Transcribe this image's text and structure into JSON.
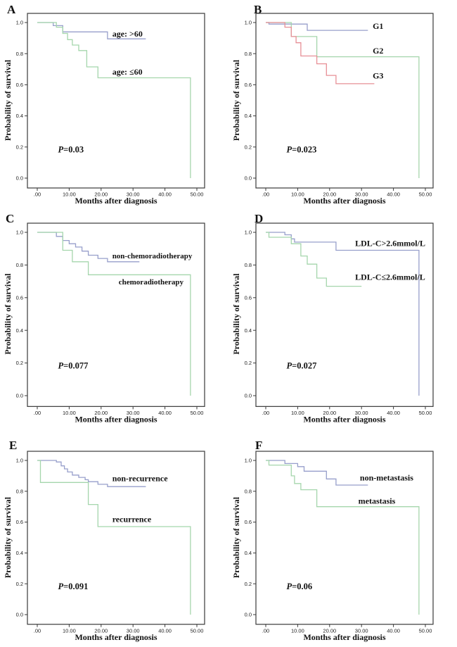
{
  "figure": {
    "description": "Six Kaplan-Meier survival curve panels (A-F)",
    "xlabel": "Months after diagnosis",
    "ylabel": "Probability of survival"
  },
  "chart_data": [
    {
      "type": "line",
      "subtype": "kaplan-meier-step",
      "panel": "A",
      "xlabel": "Months after diagnosis",
      "ylabel": "Probability of survival",
      "xlim": [
        -3,
        52.5
      ],
      "ylim": [
        -0.06,
        1.06
      ],
      "grid": false,
      "legend": "inline-annotations",
      "x_ticks": [
        0,
        10,
        20,
        30,
        40,
        50
      ],
      "x_tick_labels": [
        ".00",
        "10.00",
        "20.00",
        "30.00",
        "40.00",
        "50.00"
      ],
      "y_ticks": [
        0.0,
        0.2,
        0.4,
        0.6,
        0.8,
        1.0
      ],
      "y_tick_labels": [
        "0.0",
        "0.2",
        "0.4",
        "0.6",
        "0.8",
        "1.0"
      ],
      "p_label": {
        "text": "P=0.03",
        "x": 6.5,
        "y": 0.165
      },
      "series": [
        {
          "name": "age: >60",
          "color": "#979fcb",
          "label_pos": {
            "x": 23.5,
            "y": 0.91
          },
          "start": [
            0,
            1.0
          ],
          "steps": [
            [
              5,
              0.98
            ],
            [
              8,
              0.94
            ],
            [
              22,
              0.895
            ],
            [
              34,
              0.895
            ]
          ]
        },
        {
          "name": "age: ≤60",
          "color": "#a5d6ac",
          "label_pos": {
            "x": 23.5,
            "y": 0.665
          },
          "start": [
            0,
            1.0
          ],
          "steps": [
            [
              6,
              0.97
            ],
            [
              8,
              0.93
            ],
            [
              9.5,
              0.89
            ],
            [
              11,
              0.855
            ],
            [
              13,
              0.82
            ],
            [
              15.5,
              0.715
            ],
            [
              19,
              0.645
            ],
            [
              48,
              0
            ]
          ]
        }
      ]
    },
    {
      "type": "line",
      "subtype": "kaplan-meier-step",
      "panel": "B",
      "xlabel": "Months after diagnosis",
      "ylabel": "Probability of survival",
      "xlim": [
        -3,
        52.5
      ],
      "ylim": [
        -0.06,
        1.06
      ],
      "grid": false,
      "legend": "inline-annotations",
      "x_ticks": [
        0,
        10,
        20,
        30,
        40,
        50
      ],
      "x_tick_labels": [
        ".00",
        "10.00",
        "20.00",
        "30.00",
        "40.00",
        "50.00"
      ],
      "y_ticks": [
        0.0,
        0.2,
        0.4,
        0.6,
        0.8,
        1.0
      ],
      "y_tick_labels": [
        "0.0",
        "0.2",
        "0.4",
        "0.6",
        "0.8",
        "1.0"
      ],
      "p_label": {
        "text": "P=0.023",
        "x": 6.5,
        "y": 0.165
      },
      "series": [
        {
          "name": "G1",
          "color": "#979fcb",
          "label_pos": {
            "x": 33.5,
            "y": 0.96
          },
          "start": [
            0,
            1.0
          ],
          "steps": [
            [
              1,
              0.99
            ],
            [
              13,
              0.95
            ],
            [
              32,
              0.95
            ]
          ]
        },
        {
          "name": "G2",
          "color": "#a5d6ac",
          "label_pos": {
            "x": 33.5,
            "y": 0.8
          },
          "start": [
            0,
            1.0
          ],
          "steps": [
            [
              8,
              0.91
            ],
            [
              16,
              0.78
            ],
            [
              48,
              0
            ]
          ]
        },
        {
          "name": "G3",
          "color": "#e78f96",
          "label_pos": {
            "x": 33.5,
            "y": 0.64
          },
          "start": [
            0,
            1.0
          ],
          "steps": [
            [
              6,
              0.97
            ],
            [
              8,
              0.91
            ],
            [
              9.5,
              0.87
            ],
            [
              11,
              0.785
            ],
            [
              16,
              0.735
            ],
            [
              19,
              0.66
            ],
            [
              22,
              0.607
            ],
            [
              34,
              0.607
            ]
          ]
        }
      ]
    },
    {
      "type": "line",
      "subtype": "kaplan-meier-step",
      "panel": "C",
      "xlabel": "Months after diagnosis",
      "ylabel": "Probability of survival",
      "xlim": [
        -3,
        52.5
      ],
      "ylim": [
        -0.06,
        1.06
      ],
      "grid": false,
      "legend": "inline-annotations",
      "x_ticks": [
        0,
        10,
        20,
        30,
        40,
        50
      ],
      "x_tick_labels": [
        ".00",
        "10.00",
        "20.00",
        "30.00",
        "40.00",
        "50.00"
      ],
      "y_ticks": [
        0.0,
        0.2,
        0.4,
        0.6,
        0.8,
        1.0
      ],
      "y_tick_labels": [
        "0.0",
        "0.2",
        "0.4",
        "0.6",
        "0.8",
        "1.0"
      ],
      "p_label": {
        "text": "P=0.077",
        "x": 6.5,
        "y": 0.165
      },
      "series": [
        {
          "name": "non-chemoradiotherapy",
          "color": "#979fcb",
          "label_pos": {
            "x": 23.5,
            "y": 0.84
          },
          "start": [
            0,
            1.0
          ],
          "steps": [
            [
              6,
              0.975
            ],
            [
              8,
              0.95
            ],
            [
              10,
              0.93
            ],
            [
              12,
              0.91
            ],
            [
              14,
              0.885
            ],
            [
              16,
              0.86
            ],
            [
              19,
              0.84
            ],
            [
              22,
              0.82
            ],
            [
              32,
              0.82
            ]
          ]
        },
        {
          "name": "chemoradiotherapy",
          "color": "#a5d6ac",
          "label_pos": {
            "x": 25.5,
            "y": 0.68
          },
          "start": [
            0,
            1.0
          ],
          "steps": [
            [
              8,
              0.89
            ],
            [
              11,
              0.82
            ],
            [
              16,
              0.74
            ],
            [
              48,
              0
            ]
          ]
        }
      ]
    },
    {
      "type": "line",
      "subtype": "kaplan-meier-step",
      "panel": "D",
      "xlabel": "Months after diagnosis",
      "ylabel": "Probability of survival",
      "xlim": [
        -3,
        52.5
      ],
      "ylim": [
        -0.06,
        1.06
      ],
      "grid": false,
      "legend": "inline-annotations",
      "x_ticks": [
        0,
        10,
        20,
        30,
        40,
        50
      ],
      "x_tick_labels": [
        ".00",
        "10.00",
        "20.00",
        "30.00",
        "40.00",
        "50.00"
      ],
      "y_ticks": [
        0.0,
        0.2,
        0.4,
        0.6,
        0.8,
        1.0
      ],
      "y_tick_labels": [
        "0.0",
        "0.2",
        "0.4",
        "0.6",
        "0.8",
        "1.0"
      ],
      "p_label": {
        "text": "P=0.027",
        "x": 6.5,
        "y": 0.165
      },
      "series": [
        {
          "name": "LDL-C>2.6mmol/L",
          "color": "#979fcb",
          "label_pos": {
            "x": 28,
            "y": 0.915
          },
          "start": [
            0,
            1.0
          ],
          "steps": [
            [
              6,
              0.985
            ],
            [
              8,
              0.96
            ],
            [
              9,
              0.94
            ],
            [
              22,
              0.89
            ],
            [
              48,
              0
            ]
          ]
        },
        {
          "name": "LDL-C≤2.6mmol/L",
          "color": "#a5d6ac",
          "label_pos": {
            "x": 28,
            "y": 0.71
          },
          "start": [
            0,
            1.0
          ],
          "steps": [
            [
              1,
              0.97
            ],
            [
              8,
              0.93
            ],
            [
              11,
              0.855
            ],
            [
              13,
              0.805
            ],
            [
              16,
              0.72
            ],
            [
              19,
              0.67
            ],
            [
              30,
              0.67
            ]
          ]
        }
      ]
    },
    {
      "type": "line",
      "subtype": "kaplan-meier-step",
      "panel": "E",
      "xlabel": "Months after diagnosis",
      "ylabel": "Probability of survival",
      "xlim": [
        -3,
        52.5
      ],
      "ylim": [
        -0.06,
        1.06
      ],
      "grid": false,
      "legend": "inline-annotations",
      "x_ticks": [
        0,
        10,
        20,
        30,
        40,
        50
      ],
      "x_tick_labels": [
        ".00",
        "10.00",
        "20.00",
        "30.00",
        "40.00",
        "50.00"
      ],
      "y_ticks": [
        0.0,
        0.2,
        0.4,
        0.6,
        0.8,
        1.0
      ],
      "y_tick_labels": [
        "0.0",
        "0.2",
        "0.4",
        "0.6",
        "0.8",
        "1.0"
      ],
      "p_label": {
        "text": "P=0.091",
        "x": 6.5,
        "y": 0.165
      },
      "series": [
        {
          "name": "non-recurrence",
          "color": "#979fcb",
          "label_pos": {
            "x": 23.5,
            "y": 0.865
          },
          "start": [
            0,
            1.0
          ],
          "steps": [
            [
              6,
              0.99
            ],
            [
              7.5,
              0.965
            ],
            [
              8.5,
              0.945
            ],
            [
              9.5,
              0.925
            ],
            [
              11,
              0.905
            ],
            [
              13,
              0.89
            ],
            [
              15,
              0.875
            ],
            [
              16,
              0.862
            ],
            [
              19,
              0.845
            ],
            [
              22,
              0.83
            ],
            [
              34,
              0.83
            ]
          ]
        },
        {
          "name": "recurrence",
          "color": "#a5d6ac",
          "label_pos": {
            "x": 23.5,
            "y": 0.6
          },
          "start": [
            0,
            1.0
          ],
          "steps": [
            [
              1,
              0.857
            ],
            [
              16,
              0.714
            ],
            [
              19,
              0.571
            ],
            [
              48,
              0
            ]
          ]
        }
      ]
    },
    {
      "type": "line",
      "subtype": "kaplan-meier-step",
      "panel": "F",
      "xlabel": "Months after diagnosis",
      "ylabel": "Probability of survival",
      "xlim": [
        -3,
        52.5
      ],
      "ylim": [
        -0.06,
        1.06
      ],
      "grid": false,
      "legend": "inline-annotations",
      "x_ticks": [
        0,
        10,
        20,
        30,
        40,
        50
      ],
      "x_tick_labels": [
        ".00",
        "10.00",
        "20.00",
        "30.00",
        "40.00",
        "50.00"
      ],
      "y_ticks": [
        0.0,
        0.2,
        0.4,
        0.6,
        0.8,
        1.0
      ],
      "y_tick_labels": [
        "0.0",
        "0.2",
        "0.4",
        "0.6",
        "0.8",
        "1.0"
      ],
      "p_label": {
        "text": "P=0.06",
        "x": 6.5,
        "y": 0.165
      },
      "series": [
        {
          "name": "non-metastasis",
          "color": "#979fcb",
          "label_pos": {
            "x": 29.5,
            "y": 0.87
          },
          "start": [
            0,
            1.0
          ],
          "steps": [
            [
              6,
              0.98
            ],
            [
              10,
              0.96
            ],
            [
              12,
              0.93
            ],
            [
              19,
              0.88
            ],
            [
              22,
              0.84
            ],
            [
              32,
              0.84
            ]
          ]
        },
        {
          "name": "metastasis",
          "color": "#a5d6ac",
          "label_pos": {
            "x": 29,
            "y": 0.72
          },
          "start": [
            0,
            1.0
          ],
          "steps": [
            [
              1,
              0.97
            ],
            [
              8,
              0.9
            ],
            [
              9,
              0.85
            ],
            [
              11,
              0.81
            ],
            [
              16,
              0.7
            ],
            [
              48,
              0
            ]
          ]
        }
      ]
    }
  ]
}
